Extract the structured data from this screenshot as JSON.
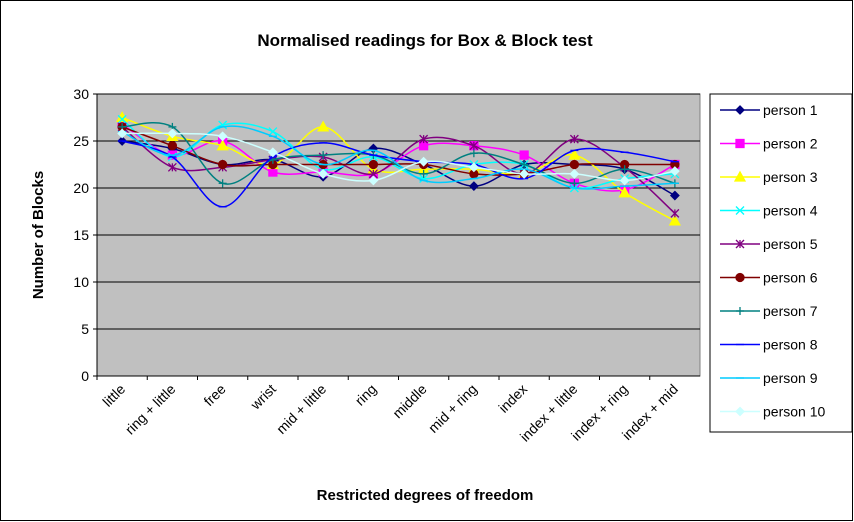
{
  "chart_data": {
    "type": "line",
    "smooth": true,
    "title": "Normalised readings for Box & Block test",
    "x_label": "Restricted degrees of freedom",
    "y_label": "Number of Blocks",
    "categories": [
      "little",
      "ring + little",
      "free",
      "wrist",
      "mid + little",
      "ring",
      "middle",
      "mid + ring",
      "index",
      "index + little",
      "index + ring",
      "index + mid"
    ],
    "ylim": [
      0,
      30
    ],
    "yticks": [
      0,
      5,
      10,
      15,
      20,
      25,
      30
    ],
    "grid": true,
    "legend": "right",
    "series": [
      {
        "name": "person 1",
        "color": "#000080",
        "marker": "diamond",
        "values": [
          25,
          24.2,
          22.5,
          23,
          21.2,
          24.2,
          22.5,
          20.2,
          22.5,
          22.5,
          22,
          19.2
        ]
      },
      {
        "name": "person 2",
        "color": "#ff00ff",
        "marker": "square",
        "values": [
          26.8,
          23.5,
          25,
          21.7,
          21.7,
          21.5,
          24.5,
          24.5,
          23.5,
          20.5,
          19.8,
          22.5
        ]
      },
      {
        "name": "person 3",
        "color": "#ffff00",
        "marker": "triangle",
        "values": [
          27.5,
          25.5,
          24.5,
          22.5,
          26.5,
          22,
          22,
          22,
          21.5,
          23.5,
          19.5,
          16.5
        ]
      },
      {
        "name": "person 4",
        "color": "#00ffff",
        "marker": "x",
        "values": [
          27.3,
          23.3,
          26.7,
          26,
          22,
          23.3,
          21,
          22.5,
          22.5,
          20,
          21,
          21.5
        ]
      },
      {
        "name": "person 5",
        "color": "#800080",
        "marker": "star",
        "values": [
          26.5,
          22.2,
          22.2,
          23,
          23.3,
          21.5,
          25.2,
          24.5,
          21.5,
          25.2,
          22.2,
          17.3
        ]
      },
      {
        "name": "person 6",
        "color": "#800000",
        "marker": "circle",
        "values": [
          26.5,
          24.5,
          22.5,
          22.5,
          22.5,
          22.5,
          22.5,
          21.5,
          21.5,
          22.5,
          22.5,
          22.5
        ]
      },
      {
        "name": "person 7",
        "color": "#008080",
        "marker": "plus",
        "values": [
          26.5,
          26.5,
          20.5,
          23,
          23.5,
          23.5,
          21.5,
          23.7,
          22.5,
          20.5,
          22,
          20.5
        ]
      },
      {
        "name": "person 8",
        "color": "#0000ff",
        "marker": "dash",
        "values": [
          25,
          23.3,
          18,
          23.3,
          24.8,
          23.5,
          22.8,
          22.5,
          21,
          24,
          23.8,
          22.8
        ]
      },
      {
        "name": "person 9",
        "color": "#00ccff",
        "marker": "dash",
        "values": [
          26,
          23.5,
          26.5,
          25.5,
          22.5,
          24,
          20.8,
          21,
          22,
          20,
          20.2,
          20.5
        ]
      },
      {
        "name": "person 10",
        "color": "#ccffff",
        "marker": "diamond",
        "values": [
          25.8,
          25.8,
          25.5,
          23.8,
          21.5,
          20.8,
          22.8,
          22.2,
          21.5,
          21.5,
          20.8,
          21.8
        ]
      }
    ]
  }
}
